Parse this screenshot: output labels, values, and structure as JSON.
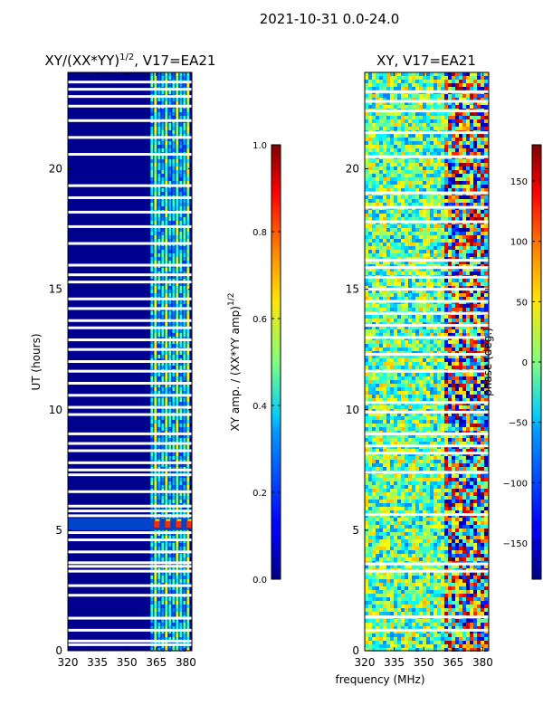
{
  "chart_data": [
    {
      "type": "heatmap",
      "suptitle": "2021-10-31 0.0-24.0",
      "title": "XY/(XX*YY)",
      "title_sup": "1/2",
      "title_tail": ", V17=EA21",
      "ylabel": "UT (hours)",
      "xlabel": "",
      "xlim": [
        320,
        383
      ],
      "ylim": [
        0,
        24
      ],
      "xticks": [
        "320",
        "335",
        "350",
        "365",
        "380"
      ],
      "xtick_values": [
        320,
        335,
        350,
        365,
        380
      ],
      "yticks": [
        "0",
        "5",
        "10",
        "15",
        "20"
      ],
      "ytick_values": [
        0,
        5,
        10,
        15,
        20
      ],
      "colorbar": {
        "label": "XY amp. / (XX*YY amp)",
        "label_sup": "1/2",
        "range": [
          0.0,
          1.0
        ],
        "ticks": [
          "0.0",
          "0.2",
          "0.4",
          "0.6",
          "0.8",
          "1.0"
        ],
        "tick_values": [
          0.0,
          0.2,
          0.4,
          0.6,
          0.8,
          1.0
        ],
        "colormap": "jet"
      },
      "flagged_hours": [
        0.25,
        0.4,
        0.85,
        1.35,
        2.3,
        2.7,
        3.3,
        3.5,
        3.65,
        4.1,
        4.6,
        4.9,
        5.6,
        5.8,
        6.0,
        6.6,
        7.3,
        7.5,
        7.8,
        8.3,
        8.6,
        9.0,
        9.8,
        10.1,
        10.6,
        11.1,
        11.6,
        12.0,
        12.5,
        12.9,
        13.4,
        13.7,
        14.2,
        14.6,
        15.3,
        15.6,
        16.0,
        16.9,
        17.6,
        18.2,
        18.8,
        19.3,
        20.6,
        21.3,
        22.0,
        22.6,
        23.0,
        23.3,
        23.6
      ],
      "active_band_mhz": [
        362,
        383
      ],
      "flare_hours": [
        5.0,
        5.5
      ]
    },
    {
      "type": "heatmap",
      "title": "XY, V17=EA21",
      "xlabel": "frequency (MHz)",
      "ylabel": "",
      "xlim": [
        320,
        383
      ],
      "ylim": [
        0,
        24
      ],
      "xticks": [
        "320",
        "335",
        "350",
        "365",
        "380"
      ],
      "xtick_values": [
        320,
        335,
        350,
        365,
        380
      ],
      "yticks": [
        "0",
        "5",
        "10",
        "15",
        "20"
      ],
      "ytick_values": [
        0,
        5,
        10,
        15,
        20
      ],
      "colorbar": {
        "label": "phase (deg.)",
        "range": [
          -180,
          180
        ],
        "ticks": [
          "−150",
          "−100",
          "−50",
          "0",
          "50",
          "100",
          "150"
        ],
        "tick_values": [
          -150,
          -100,
          -50,
          0,
          50,
          100,
          150
        ],
        "colormap": "jet"
      },
      "flagged_hours": [
        0.85,
        1.4,
        3.3,
        3.6,
        5.65,
        7.4,
        8.2,
        8.5,
        9.0,
        9.9,
        10.3,
        11.6,
        12.3,
        13.0,
        13.5,
        14.0,
        14.5,
        15.0,
        15.5,
        15.9,
        16.2,
        17.8,
        18.4,
        19.0,
        20.5,
        21.5,
        22.4,
        22.8,
        23.2
      ]
    }
  ]
}
